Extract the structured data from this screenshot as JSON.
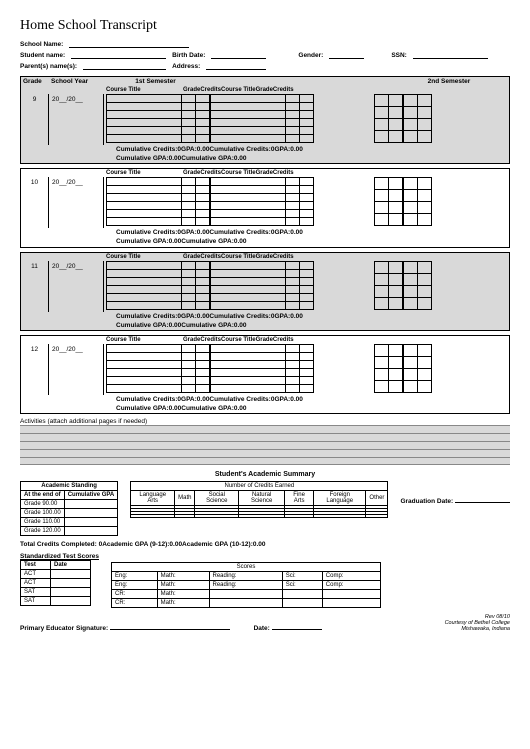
{
  "title": "Home School Transcript",
  "header": {
    "school_name": "School Name:",
    "student_name": "Student name:",
    "birth_date": "Birth Date:",
    "gender": "Gender:",
    "ssn": "SSN:",
    "parents": "Parent(s) name(s):",
    "address": "Address:"
  },
  "cols": {
    "grade": "Grade",
    "school_year": "School Year",
    "sem1": "1st Semester",
    "sem2": "2nd Semester",
    "course_title": "Course Title",
    "grade_col": "Grade",
    "credits": "Credits"
  },
  "grades": [
    {
      "g": "9",
      "y": "20__/20__",
      "shaded": true
    },
    {
      "g": "10",
      "y": "20__/20__",
      "shaded": false
    },
    {
      "g": "11",
      "y": "20__/20__",
      "shaded": true
    },
    {
      "g": "12",
      "y": "20__/20__",
      "shaded": false
    }
  ],
  "cum1": "Cumulative Credits:0GPA:0.00Cumulative Credits:0GPA:0.00",
  "cum2": "Cumulative GPA:0.00Cumulative GPA:0.00",
  "activities_label": "Activities (attach additional pages if needed)",
  "summary_title": "Student's Academic Summary",
  "standing": {
    "title": "Academic Standing",
    "h1": "At the end of",
    "h2": "Cumulative GPA",
    "rows": [
      "Grade   90.00",
      "Grade 100.00",
      "Grade 110.00",
      "Grade 120.00"
    ]
  },
  "credits_earned": {
    "title": "Number of Credits Earned",
    "cols": [
      "Language Arts",
      "Math",
      "Social Science",
      "Natural Science",
      "Fine Arts",
      "Foreign Language",
      "Other"
    ]
  },
  "grad_date": "Graduation Date:",
  "totals": "Total Credits Completed:    0Academic GPA (9-12):0.00Academic GPA (10-12):0.00",
  "tests": {
    "title": "Standardized Test Scores",
    "h1": "Test",
    "h2": "Date",
    "rows": [
      "ACT",
      "ACT",
      "SAT",
      "SAT"
    ]
  },
  "scores": {
    "title": "Scores",
    "rows": [
      [
        "Eng:",
        "Math:",
        "Reading:",
        "Sci:",
        "Comp:"
      ],
      [
        "Eng:",
        "Math:",
        "Reading:",
        "Sci:",
        "Comp:"
      ],
      [
        "CR:",
        "Math:",
        "",
        "",
        ""
      ],
      [
        "CR:",
        "Math:",
        "",
        "",
        ""
      ]
    ]
  },
  "sig": "Primary Educator Signature:",
  "date": "Date:",
  "rev": "Rev 08/10",
  "courtesy1": "Courtesy of Bethel College",
  "courtesy2": "Mishawaka, Indiana"
}
